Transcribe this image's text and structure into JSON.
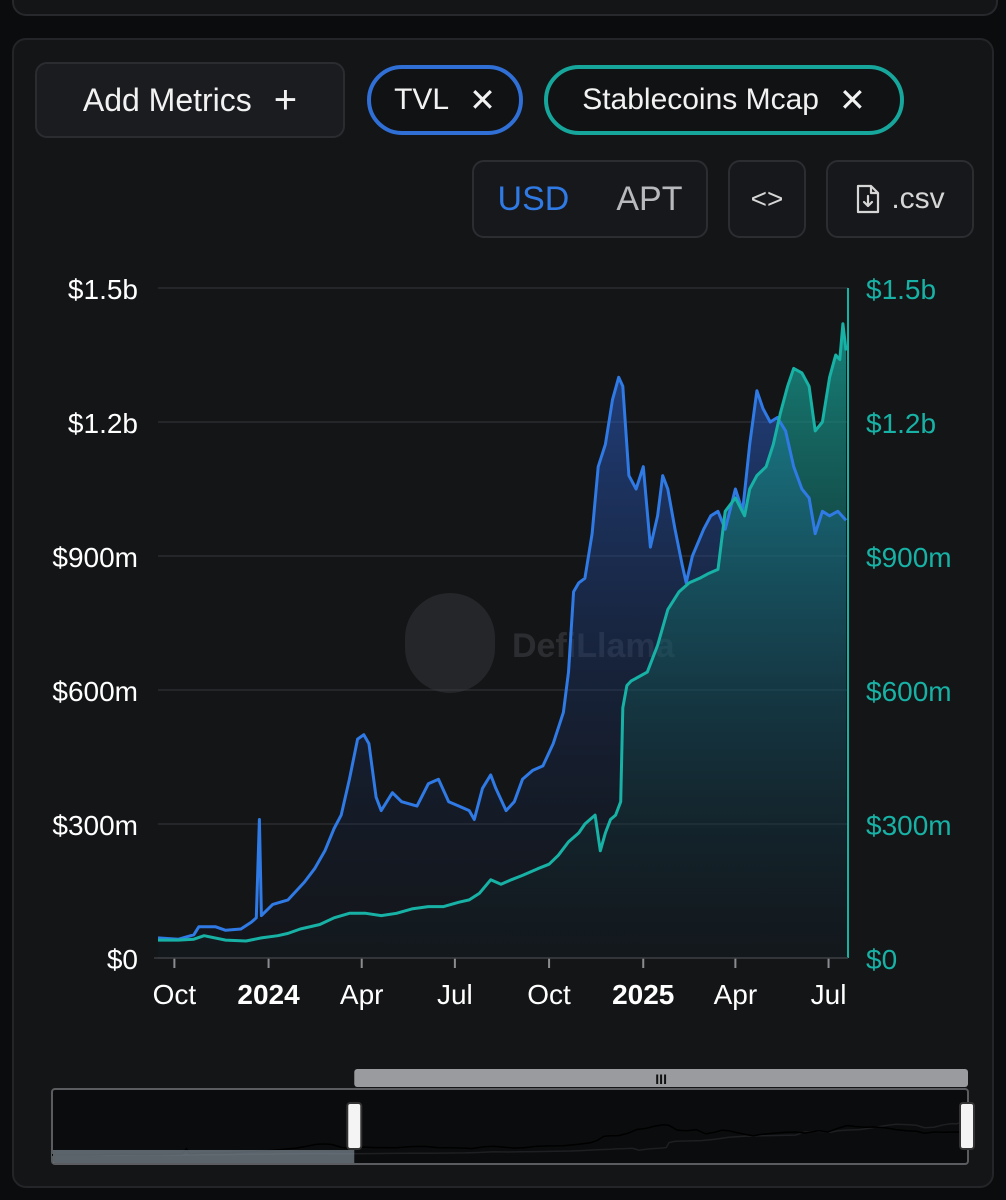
{
  "controls": {
    "add_metrics_label": "Add Metrics",
    "add_metrics_icon": "plus-icon",
    "chips": [
      {
        "label": "TVL",
        "color": "#2f6fd6"
      },
      {
        "label": "Stablecoins Mcap",
        "color": "#17a69b"
      }
    ],
    "currency_options": [
      "USD",
      "APT"
    ],
    "currency_selected": "USD",
    "embed_icon": "code-brackets-icon",
    "csv_label": ".csv",
    "csv_icon": "file-download-icon"
  },
  "watermark": "DefiLlama",
  "colors": {
    "tvl": "#2f7ae5",
    "stable": "#17b2a5",
    "background": "#141517"
  },
  "chart_data": {
    "type": "area",
    "title": "",
    "left_axis": {
      "ticks": [
        "$0",
        "$300m",
        "$600m",
        "$900m",
        "$1.2b",
        "$1.5b"
      ],
      "ylim": [
        0,
        1500000000
      ]
    },
    "right_axis": {
      "ticks": [
        "$0",
        "$300m",
        "$600m",
        "$900m",
        "$1.2b",
        "$1.5b"
      ],
      "ylim": [
        0,
        1500000000
      ],
      "color": "#17b2a5"
    },
    "x_ticks": [
      {
        "label": "Oct",
        "date": "2023-10-01",
        "bold": false
      },
      {
        "label": "2024",
        "date": "2024-01-01",
        "bold": true
      },
      {
        "label": "Apr",
        "date": "2024-04-01",
        "bold": false
      },
      {
        "label": "Jul",
        "date": "2024-07-01",
        "bold": false
      },
      {
        "label": "Oct",
        "date": "2024-10-01",
        "bold": false
      },
      {
        "label": "2025",
        "date": "2025-01-01",
        "bold": true
      },
      {
        "label": "Apr",
        "date": "2025-04-01",
        "bold": false
      },
      {
        "label": "Jul",
        "date": "2025-07-01",
        "bold": false
      }
    ],
    "xlim": [
      "2023-09-15",
      "2025-07-20"
    ],
    "grid": true,
    "series": [
      {
        "name": "TVL",
        "axis": "left",
        "points": [
          [
            "2023-09-15",
            45000000
          ],
          [
            "2023-10-05",
            42000000
          ],
          [
            "2023-10-20",
            52000000
          ],
          [
            "2023-10-25",
            70000000
          ],
          [
            "2023-11-10",
            70000000
          ],
          [
            "2023-11-20",
            62000000
          ],
          [
            "2023-12-05",
            65000000
          ],
          [
            "2023-12-15",
            80000000
          ],
          [
            "2023-12-20",
            90000000
          ],
          [
            "2023-12-23",
            310000000
          ],
          [
            "2023-12-25",
            95000000
          ],
          [
            "2024-01-05",
            120000000
          ],
          [
            "2024-01-20",
            130000000
          ],
          [
            "2024-02-05",
            170000000
          ],
          [
            "2024-02-15",
            200000000
          ],
          [
            "2024-02-25",
            240000000
          ],
          [
            "2024-03-05",
            290000000
          ],
          [
            "2024-03-12",
            320000000
          ],
          [
            "2024-03-20",
            400000000
          ],
          [
            "2024-03-28",
            490000000
          ],
          [
            "2024-04-03",
            500000000
          ],
          [
            "2024-04-08",
            480000000
          ],
          [
            "2024-04-15",
            360000000
          ],
          [
            "2024-04-20",
            330000000
          ],
          [
            "2024-05-01",
            370000000
          ],
          [
            "2024-05-10",
            350000000
          ],
          [
            "2024-05-25",
            340000000
          ],
          [
            "2024-06-05",
            390000000
          ],
          [
            "2024-06-15",
            400000000
          ],
          [
            "2024-06-25",
            350000000
          ],
          [
            "2024-07-05",
            340000000
          ],
          [
            "2024-07-15",
            330000000
          ],
          [
            "2024-07-20",
            310000000
          ],
          [
            "2024-07-28",
            380000000
          ],
          [
            "2024-08-05",
            410000000
          ],
          [
            "2024-08-10",
            380000000
          ],
          [
            "2024-08-20",
            330000000
          ],
          [
            "2024-08-28",
            350000000
          ],
          [
            "2024-09-05",
            400000000
          ],
          [
            "2024-09-15",
            420000000
          ],
          [
            "2024-09-25",
            430000000
          ],
          [
            "2024-10-05",
            480000000
          ],
          [
            "2024-10-15",
            550000000
          ],
          [
            "2024-10-20",
            640000000
          ],
          [
            "2024-10-25",
            820000000
          ],
          [
            "2024-10-30",
            840000000
          ],
          [
            "2024-11-05",
            850000000
          ],
          [
            "2024-11-12",
            950000000
          ],
          [
            "2024-11-18",
            1100000000
          ],
          [
            "2024-11-25",
            1150000000
          ],
          [
            "2024-12-02",
            1250000000
          ],
          [
            "2024-12-08",
            1300000000
          ],
          [
            "2024-12-12",
            1280000000
          ],
          [
            "2024-12-18",
            1080000000
          ],
          [
            "2024-12-25",
            1050000000
          ],
          [
            "2025-01-01",
            1100000000
          ],
          [
            "2025-01-08",
            920000000
          ],
          [
            "2025-01-15",
            990000000
          ],
          [
            "2025-01-20",
            1080000000
          ],
          [
            "2025-01-25",
            1050000000
          ],
          [
            "2025-02-01",
            960000000
          ],
          [
            "2025-02-08",
            880000000
          ],
          [
            "2025-02-12",
            840000000
          ],
          [
            "2025-02-18",
            900000000
          ],
          [
            "2025-03-01",
            960000000
          ],
          [
            "2025-03-08",
            990000000
          ],
          [
            "2025-03-15",
            1000000000
          ],
          [
            "2025-03-22",
            960000000
          ],
          [
            "2025-04-01",
            1050000000
          ],
          [
            "2025-04-08",
            1000000000
          ],
          [
            "2025-04-15",
            1150000000
          ],
          [
            "2025-04-22",
            1270000000
          ],
          [
            "2025-04-28",
            1230000000
          ],
          [
            "2025-05-05",
            1200000000
          ],
          [
            "2025-05-12",
            1210000000
          ],
          [
            "2025-05-20",
            1180000000
          ],
          [
            "2025-05-28",
            1100000000
          ],
          [
            "2025-06-05",
            1050000000
          ],
          [
            "2025-06-12",
            1030000000
          ],
          [
            "2025-06-18",
            950000000
          ],
          [
            "2025-06-25",
            1000000000
          ],
          [
            "2025-07-02",
            990000000
          ],
          [
            "2025-07-10",
            1000000000
          ],
          [
            "2025-07-18",
            980000000
          ]
        ]
      },
      {
        "name": "Stablecoins Mcap",
        "axis": "right",
        "points": [
          [
            "2023-09-15",
            40000000
          ],
          [
            "2023-10-05",
            40000000
          ],
          [
            "2023-10-20",
            42000000
          ],
          [
            "2023-10-30",
            50000000
          ],
          [
            "2023-11-20",
            40000000
          ],
          [
            "2023-12-10",
            38000000
          ],
          [
            "2023-12-25",
            45000000
          ],
          [
            "2024-01-10",
            50000000
          ],
          [
            "2024-01-20",
            55000000
          ],
          [
            "2024-02-01",
            65000000
          ],
          [
            "2024-02-20",
            75000000
          ],
          [
            "2024-03-05",
            90000000
          ],
          [
            "2024-03-20",
            100000000
          ],
          [
            "2024-04-05",
            100000000
          ],
          [
            "2024-04-20",
            95000000
          ],
          [
            "2024-05-05",
            100000000
          ],
          [
            "2024-05-20",
            110000000
          ],
          [
            "2024-06-05",
            115000000
          ],
          [
            "2024-06-20",
            115000000
          ],
          [
            "2024-07-05",
            125000000
          ],
          [
            "2024-07-15",
            130000000
          ],
          [
            "2024-07-25",
            145000000
          ],
          [
            "2024-08-05",
            175000000
          ],
          [
            "2024-08-15",
            165000000
          ],
          [
            "2024-08-25",
            175000000
          ],
          [
            "2024-09-05",
            185000000
          ],
          [
            "2024-09-20",
            200000000
          ],
          [
            "2024-10-01",
            210000000
          ],
          [
            "2024-10-10",
            230000000
          ],
          [
            "2024-10-20",
            260000000
          ],
          [
            "2024-10-30",
            280000000
          ],
          [
            "2024-11-05",
            300000000
          ],
          [
            "2024-11-10",
            310000000
          ],
          [
            "2024-11-15",
            320000000
          ],
          [
            "2024-11-20",
            240000000
          ],
          [
            "2024-11-25",
            280000000
          ],
          [
            "2024-11-30",
            310000000
          ],
          [
            "2024-12-05",
            320000000
          ],
          [
            "2024-12-10",
            350000000
          ],
          [
            "2024-12-12",
            560000000
          ],
          [
            "2024-12-16",
            610000000
          ],
          [
            "2024-12-20",
            620000000
          ],
          [
            "2025-01-05",
            640000000
          ],
          [
            "2025-01-15",
            700000000
          ],
          [
            "2025-01-25",
            780000000
          ],
          [
            "2025-02-05",
            820000000
          ],
          [
            "2025-02-15",
            840000000
          ],
          [
            "2025-02-25",
            850000000
          ],
          [
            "2025-03-05",
            860000000
          ],
          [
            "2025-03-15",
            870000000
          ],
          [
            "2025-03-22",
            1000000000
          ],
          [
            "2025-04-01",
            1030000000
          ],
          [
            "2025-04-10",
            990000000
          ],
          [
            "2025-04-15",
            1050000000
          ],
          [
            "2025-04-22",
            1080000000
          ],
          [
            "2025-05-01",
            1100000000
          ],
          [
            "2025-05-08",
            1150000000
          ],
          [
            "2025-05-15",
            1220000000
          ],
          [
            "2025-05-22",
            1280000000
          ],
          [
            "2025-05-28",
            1320000000
          ],
          [
            "2025-06-05",
            1310000000
          ],
          [
            "2025-06-12",
            1280000000
          ],
          [
            "2025-06-18",
            1180000000
          ],
          [
            "2025-06-25",
            1200000000
          ],
          [
            "2025-07-02",
            1300000000
          ],
          [
            "2025-07-08",
            1350000000
          ],
          [
            "2025-07-12",
            1340000000
          ],
          [
            "2025-07-15",
            1420000000
          ],
          [
            "2025-07-18",
            1360000000
          ]
        ]
      }
    ],
    "range_selector": {
      "start_fraction": 0.33,
      "end_fraction": 1.0
    }
  }
}
